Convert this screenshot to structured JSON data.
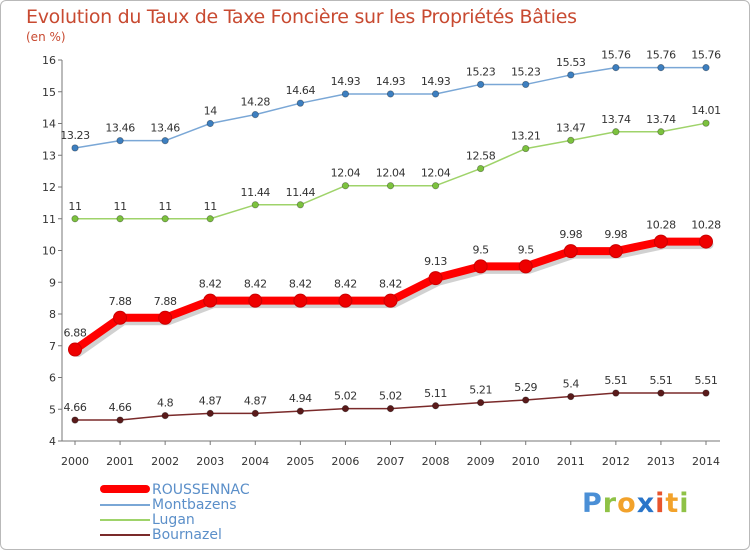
{
  "title": "Evolution du Taux de Taxe Foncière sur les Propriétés Bâties",
  "subtitle": "(en %)",
  "logo_text": "Proxiti",
  "chart_data": {
    "type": "line",
    "x": [
      2000,
      2001,
      2002,
      2003,
      2004,
      2005,
      2006,
      2007,
      2008,
      2009,
      2010,
      2011,
      2012,
      2013,
      2014
    ],
    "ylim": [
      4,
      16
    ],
    "y_ticks": [
      4,
      5,
      6,
      7,
      8,
      9,
      10,
      11,
      12,
      13,
      14,
      15,
      16
    ],
    "grid": false,
    "legend_position": "bottom-left",
    "series": [
      {
        "name": "ROUSSENNAC",
        "color": "#ff0000",
        "marker_color": "#ee0000",
        "values": [
          6.88,
          7.88,
          7.88,
          8.42,
          8.42,
          8.42,
          8.42,
          8.42,
          9.13,
          9.5,
          9.5,
          9.98,
          9.98,
          10.28,
          10.28
        ],
        "labels": [
          "6.88",
          "7.88",
          "7.88",
          "8.42",
          "8.42",
          "8.42",
          "8.42",
          "8.42",
          "9.13",
          "9.5",
          "9.5",
          "9.98",
          "9.98",
          "10.28",
          "10.28"
        ],
        "emphasis": true
      },
      {
        "name": "Montbazens",
        "color": "#7aa7d6",
        "marker_color": "#3d7fc0",
        "values": [
          13.23,
          13.46,
          13.46,
          14,
          14.28,
          14.64,
          14.93,
          14.93,
          14.93,
          15.23,
          15.23,
          15.53,
          15.76,
          15.76,
          15.76
        ],
        "labels": [
          "13.23",
          "13.46",
          "13.46",
          "14",
          "14.28",
          "14.64",
          "14.93",
          "14.93",
          "14.93",
          "15.23",
          "15.23",
          "15.53",
          "15.76",
          "15.76",
          "15.76"
        ]
      },
      {
        "name": "Lugan",
        "color": "#9fd36a",
        "marker_color": "#7cc23e",
        "values": [
          11,
          11,
          11,
          11,
          11.44,
          11.44,
          12.04,
          12.04,
          12.04,
          12.58,
          13.21,
          13.47,
          13.74,
          13.74,
          14.01
        ],
        "labels": [
          "11",
          "11",
          "11",
          "11",
          "11.44",
          "11.44",
          "12.04",
          "12.04",
          "12.04",
          "12.58",
          "13.21",
          "13.47",
          "13.74",
          "13.74",
          "14.01"
        ]
      },
      {
        "name": "Bournazel",
        "color": "#7a2a2a",
        "marker_color": "#5a1a1a",
        "values": [
          4.66,
          4.66,
          4.8,
          4.87,
          4.87,
          4.94,
          5.02,
          5.02,
          5.11,
          5.21,
          5.29,
          5.4,
          5.51,
          5.51,
          5.51
        ],
        "labels": [
          "4.66",
          "4.66",
          "4.8",
          "4.87",
          "4.87",
          "4.94",
          "5.02",
          "5.02",
          "5.11",
          "5.21",
          "5.29",
          "5.4",
          "5.51",
          "5.51",
          "5.51"
        ]
      }
    ]
  }
}
